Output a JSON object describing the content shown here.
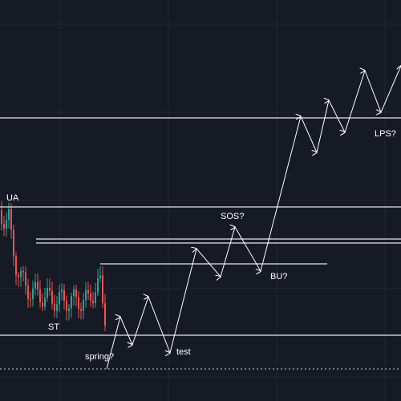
{
  "annotations": {
    "ua": "UA",
    "st": "ST",
    "spring": "spring?",
    "test": "test",
    "sos": "SOS?",
    "bu": "BU?",
    "lps": "LPS?"
  }
}
